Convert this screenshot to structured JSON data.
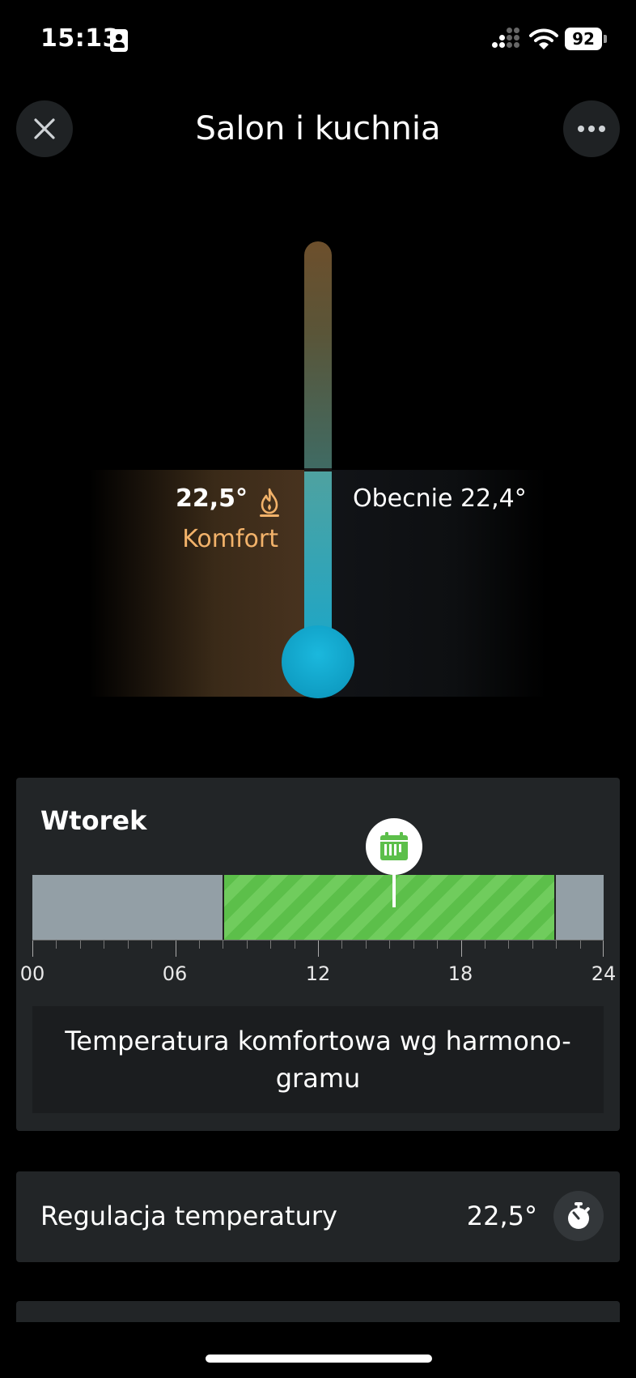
{
  "status_bar": {
    "time": "15:13",
    "battery": "92"
  },
  "header": {
    "title": "Salon i kuchnia",
    "close_icon": "close-icon",
    "more_icon": "more-icon"
  },
  "thermostat": {
    "set_temperature": "22,5°",
    "mode": "Komfort",
    "current_temperature": "Obecnie 22,4°",
    "mode_icon": "flame-icon",
    "colors": {
      "heat": "#f2b26a",
      "cool": "#1ea6c6"
    }
  },
  "schedule": {
    "day": "Wtorek",
    "tick_labels": [
      "00",
      "06",
      "12",
      "18",
      "24"
    ],
    "segments": [
      {
        "type": "economy",
        "start_hour": 0,
        "end_hour": 8,
        "color": "#939fa6"
      },
      {
        "type": "comfort",
        "start_hour": 8,
        "end_hour": 22,
        "color": "#5cbf4a"
      },
      {
        "type": "economy",
        "start_hour": 22,
        "end_hour": 24,
        "color": "#939fa6"
      }
    ],
    "now_hour": 15.2,
    "now_icon": "calendar-icon",
    "message": "Temperatura komfortowa wg harmono-gramu"
  },
  "regulation": {
    "label": "Regulacja temperatury",
    "value": "22,5°",
    "icon": "timer-icon"
  }
}
